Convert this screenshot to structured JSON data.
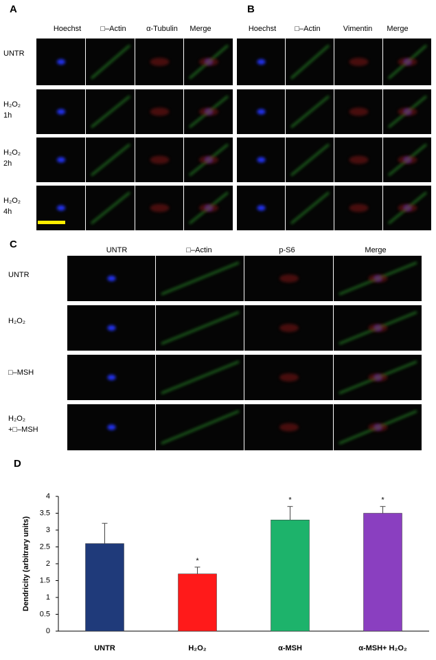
{
  "panel_a": {
    "label": "A",
    "columns": [
      "Hoechst",
      "□–Actin",
      "α-Tubulin",
      "Merge"
    ],
    "rows": [
      [
        "UNTR"
      ],
      [
        "H₂O₂",
        "1h"
      ],
      [
        "H₂O₂",
        "2h"
      ],
      [
        "H₂O₂",
        "4h"
      ]
    ]
  },
  "panel_b": {
    "label": "B",
    "columns": [
      "Hoechst",
      "□–Actin",
      "Vimentin",
      "Merge"
    ]
  },
  "panel_c": {
    "label": "C",
    "columns": [
      "UNTR",
      "□–Actin",
      "p-S6",
      "Merge"
    ],
    "rows": [
      [
        "UNTR"
      ],
      [
        "H₂O₂"
      ],
      [
        "□–MSH"
      ],
      [
        "H₂O₂",
        "+□–MSH"
      ]
    ]
  },
  "panel_d": {
    "label": "D"
  },
  "chart_data": {
    "type": "bar",
    "ylabel": "Dendricity (arbitrary units)",
    "categories": [
      "UNTR",
      "H₂O₂",
      "α-MSH",
      "α-MSH+ H₂O₂"
    ],
    "values": [
      2.6,
      1.7,
      3.3,
      3.5
    ],
    "errors": [
      0.6,
      0.2,
      0.4,
      0.2
    ],
    "colors": [
      "#1f3a7a",
      "#ff1a1a",
      "#1db36b",
      "#8a3fc0"
    ],
    "significance": [
      null,
      "*",
      "*",
      "*"
    ],
    "ylim": [
      0,
      4
    ],
    "yticks": [
      0,
      0.5,
      1,
      1.5,
      2,
      2.5,
      3,
      3.5,
      4
    ],
    "grid": false
  }
}
